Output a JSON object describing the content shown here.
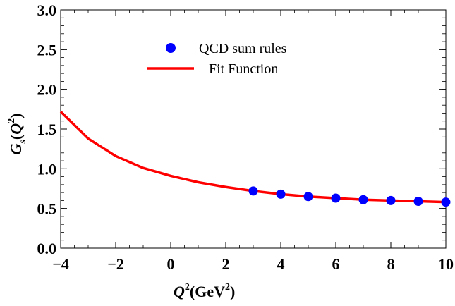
{
  "chart_data": {
    "type": "line",
    "title": "",
    "xlabel": "Q2(GeV2)",
    "xlabel_parts": {
      "base": "Q",
      "exp1": "2",
      "mid": "(GeV",
      "exp2": "2",
      "tail": ")"
    },
    "ylabel": "Gs(Q2)",
    "ylabel_parts": {
      "base": "G",
      "sub": "s",
      "open": "(",
      "var": "Q",
      "exp": "2",
      "close": ")"
    },
    "xlim": [
      -4,
      10
    ],
    "ylim": [
      0,
      3
    ],
    "x_ticks": [
      -4,
      -2,
      0,
      2,
      4,
      6,
      8,
      10
    ],
    "x_tick_labels": [
      "−4",
      "−2",
      "0",
      "2",
      "4",
      "6",
      "8",
      "10"
    ],
    "y_ticks": [
      0,
      0.5,
      1,
      1.5,
      2,
      2.5,
      3
    ],
    "y_tick_labels": [
      "0.0",
      "0.5",
      "1.0",
      "1.5",
      "2.0",
      "2.5",
      "3.0"
    ],
    "grid": false,
    "legend_position": "top-center",
    "series": [
      {
        "name": "QCD sum rules",
        "kind": "scatter",
        "color": "#0000ff",
        "x": [
          3,
          4,
          5,
          6,
          7,
          8,
          9,
          10
        ],
        "y": [
          0.72,
          0.68,
          0.65,
          0.63,
          0.61,
          0.6,
          0.59,
          0.58
        ]
      },
      {
        "name": "Fit Function",
        "kind": "line",
        "color": "#ff0000",
        "x": [
          -4,
          -3,
          -2,
          -1,
          0,
          1,
          2,
          3,
          4,
          5,
          6,
          7,
          8,
          9,
          10
        ],
        "y": [
          1.72,
          1.38,
          1.16,
          1.01,
          0.91,
          0.83,
          0.77,
          0.72,
          0.68,
          0.65,
          0.63,
          0.61,
          0.6,
          0.59,
          0.58
        ]
      }
    ]
  }
}
